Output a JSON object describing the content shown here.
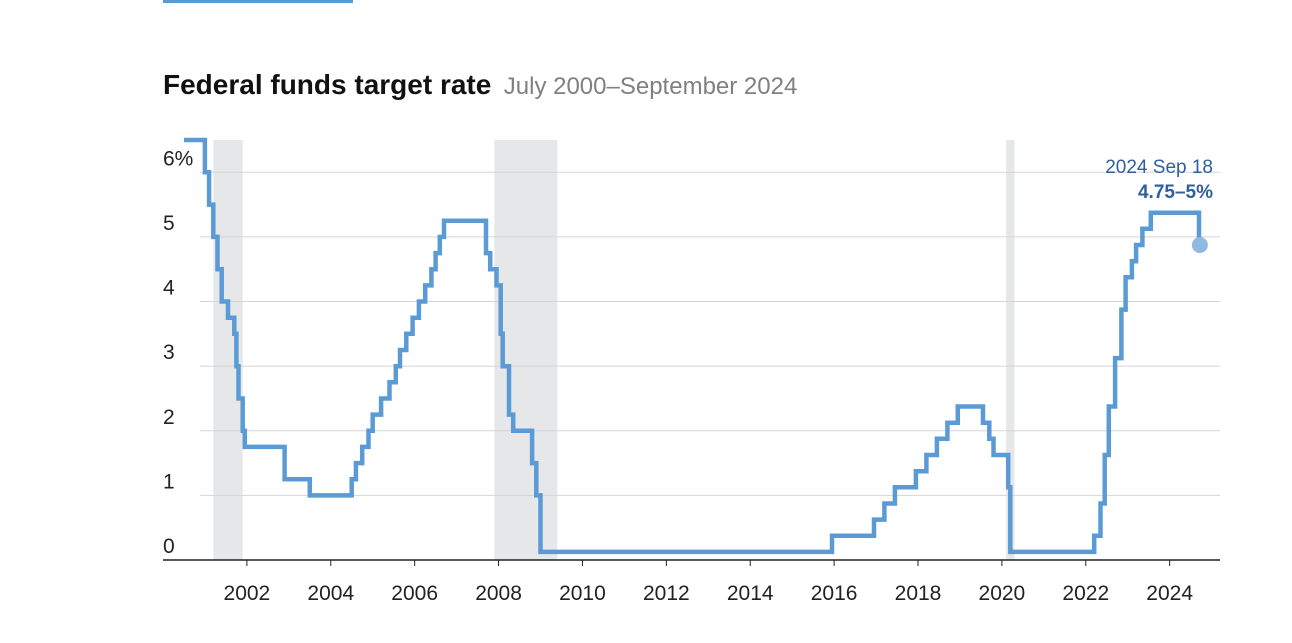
{
  "header": {
    "title": "Federal funds target rate",
    "subtitle": "July 2000–September 2024"
  },
  "chart_data": {
    "type": "line",
    "title": "Federal funds target rate",
    "subtitle": "July 2000–September 2024",
    "xlabel": "",
    "ylabel": "",
    "x_range": [
      2000.0,
      2025.2
    ],
    "ylim": [
      0,
      6.5
    ],
    "grid": true,
    "step": true,
    "y_ticks": [
      {
        "value": 0,
        "label": "0"
      },
      {
        "value": 1,
        "label": "1"
      },
      {
        "value": 2,
        "label": "2"
      },
      {
        "value": 3,
        "label": "3"
      },
      {
        "value": 4,
        "label": "4"
      },
      {
        "value": 5,
        "label": "5"
      },
      {
        "value": 6,
        "label": "6%"
      }
    ],
    "x_ticks": [
      {
        "value": 2002,
        "label": "2002"
      },
      {
        "value": 2004,
        "label": "2004"
      },
      {
        "value": 2006,
        "label": "2006"
      },
      {
        "value": 2008,
        "label": "2008"
      },
      {
        "value": 2010,
        "label": "2010"
      },
      {
        "value": 2012,
        "label": "2012"
      },
      {
        "value": 2014,
        "label": "2014"
      },
      {
        "value": 2016,
        "label": "2016"
      },
      {
        "value": 2018,
        "label": "2018"
      },
      {
        "value": 2020,
        "label": "2020"
      },
      {
        "value": 2022,
        "label": "2022"
      },
      {
        "value": 2024,
        "label": "2024"
      }
    ],
    "recessions": [
      {
        "start": 2001.2,
        "end": 2001.9
      },
      {
        "start": 2007.9,
        "end": 2009.4
      },
      {
        "start": 2020.1,
        "end": 2020.3
      }
    ],
    "series": [
      {
        "color": "#5b9bd5",
        "points": [
          [
            2000.5,
            6.5
          ],
          [
            2001.0,
            6.0
          ],
          [
            2001.1,
            5.5
          ],
          [
            2001.2,
            5.0
          ],
          [
            2001.3,
            4.5
          ],
          [
            2001.4,
            4.0
          ],
          [
            2001.55,
            3.75
          ],
          [
            2001.7,
            3.5
          ],
          [
            2001.75,
            3.0
          ],
          [
            2001.8,
            2.5
          ],
          [
            2001.9,
            2.0
          ],
          [
            2001.95,
            1.75
          ],
          [
            2002.9,
            1.25
          ],
          [
            2003.5,
            1.0
          ],
          [
            2004.5,
            1.25
          ],
          [
            2004.6,
            1.5
          ],
          [
            2004.75,
            1.75
          ],
          [
            2004.9,
            2.0
          ],
          [
            2005.0,
            2.25
          ],
          [
            2005.2,
            2.5
          ],
          [
            2005.4,
            2.75
          ],
          [
            2005.55,
            3.0
          ],
          [
            2005.65,
            3.25
          ],
          [
            2005.8,
            3.5
          ],
          [
            2005.95,
            3.75
          ],
          [
            2006.1,
            4.0
          ],
          [
            2006.25,
            4.25
          ],
          [
            2006.4,
            4.5
          ],
          [
            2006.5,
            4.75
          ],
          [
            2006.6,
            5.0
          ],
          [
            2006.7,
            5.25
          ],
          [
            2007.7,
            4.75
          ],
          [
            2007.8,
            4.5
          ],
          [
            2007.95,
            4.25
          ],
          [
            2008.05,
            3.5
          ],
          [
            2008.1,
            3.0
          ],
          [
            2008.25,
            2.25
          ],
          [
            2008.35,
            2.0
          ],
          [
            2008.8,
            1.5
          ],
          [
            2008.9,
            1.0
          ],
          [
            2009.0,
            0.125
          ],
          [
            2015.95,
            0.375
          ],
          [
            2016.95,
            0.625
          ],
          [
            2017.2,
            0.875
          ],
          [
            2017.45,
            1.125
          ],
          [
            2017.95,
            1.375
          ],
          [
            2018.2,
            1.625
          ],
          [
            2018.45,
            1.875
          ],
          [
            2018.7,
            2.125
          ],
          [
            2018.95,
            2.375
          ],
          [
            2019.55,
            2.125
          ],
          [
            2019.7,
            1.875
          ],
          [
            2019.8,
            1.625
          ],
          [
            2020.15,
            1.125
          ],
          [
            2020.2,
            0.125
          ],
          [
            2022.2,
            0.375
          ],
          [
            2022.35,
            0.875
          ],
          [
            2022.45,
            1.625
          ],
          [
            2022.55,
            2.375
          ],
          [
            2022.7,
            3.125
          ],
          [
            2022.85,
            3.875
          ],
          [
            2022.95,
            4.375
          ],
          [
            2023.1,
            4.625
          ],
          [
            2023.2,
            4.875
          ],
          [
            2023.35,
            5.125
          ],
          [
            2023.55,
            5.375
          ],
          [
            2024.7,
            4.875
          ]
        ]
      }
    ],
    "end_date": 2024.72,
    "end_marker": {
      "x": 2024.72,
      "y": 4.875
    },
    "annotation": {
      "date": "2024 Sep 18",
      "value": "4.75–5%"
    }
  }
}
